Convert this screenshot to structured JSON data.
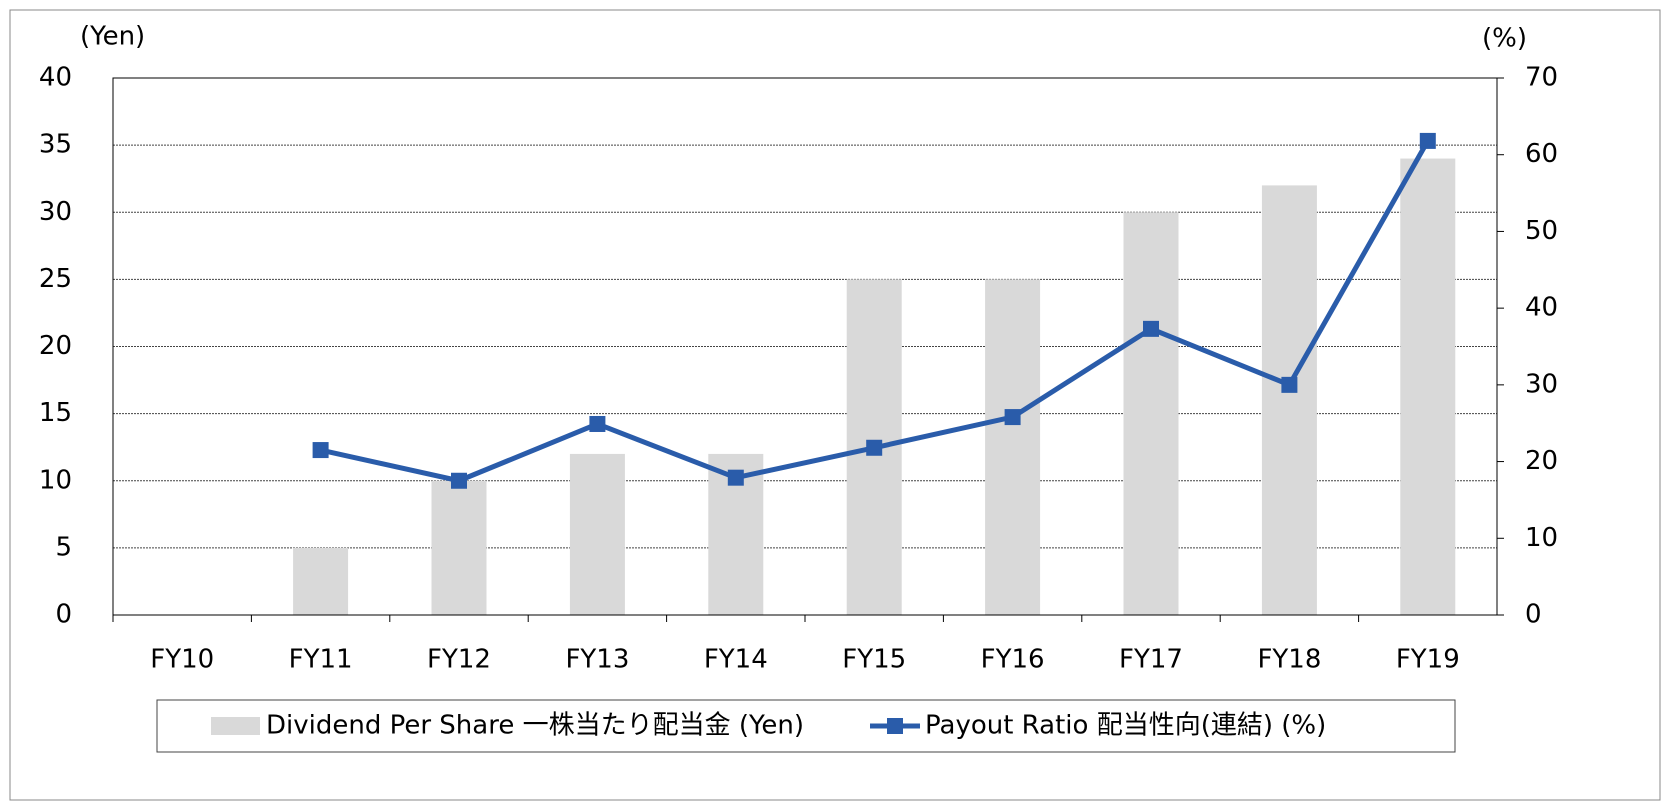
{
  "chart_data": {
    "type": "combo",
    "y_label": "(Yen)",
    "y2_label": "(%)",
    "categories": [
      "FY10",
      "FY11",
      "FY12",
      "FY13",
      "FY14",
      "FY15",
      "FY16",
      "FY17",
      "FY18",
      "FY19"
    ],
    "series": [
      {
        "name": "Dividend Per Share 一株当たり配当金 (Yen)",
        "type": "bar",
        "color": "#d9d9d9",
        "values": [
          0,
          5,
          10,
          12,
          12,
          25,
          25,
          30,
          32,
          34
        ]
      },
      {
        "name": "Payout Ratio  配当性向(連結) (%)",
        "type": "line",
        "axis": "y2",
        "color": "#2a5caa",
        "values": [
          null,
          21.5,
          17.5,
          24.9,
          17.9,
          21.8,
          25.8,
          37.3,
          30,
          61.8
        ]
      }
    ],
    "ylim": [
      0,
      40
    ],
    "yticks": [
      0,
      5,
      10,
      15,
      20,
      25,
      30,
      35,
      40
    ],
    "y2lim": [
      0,
      70
    ],
    "y2ticks": [
      0,
      10,
      20,
      30,
      40,
      50,
      60,
      70
    ],
    "grid": true
  }
}
